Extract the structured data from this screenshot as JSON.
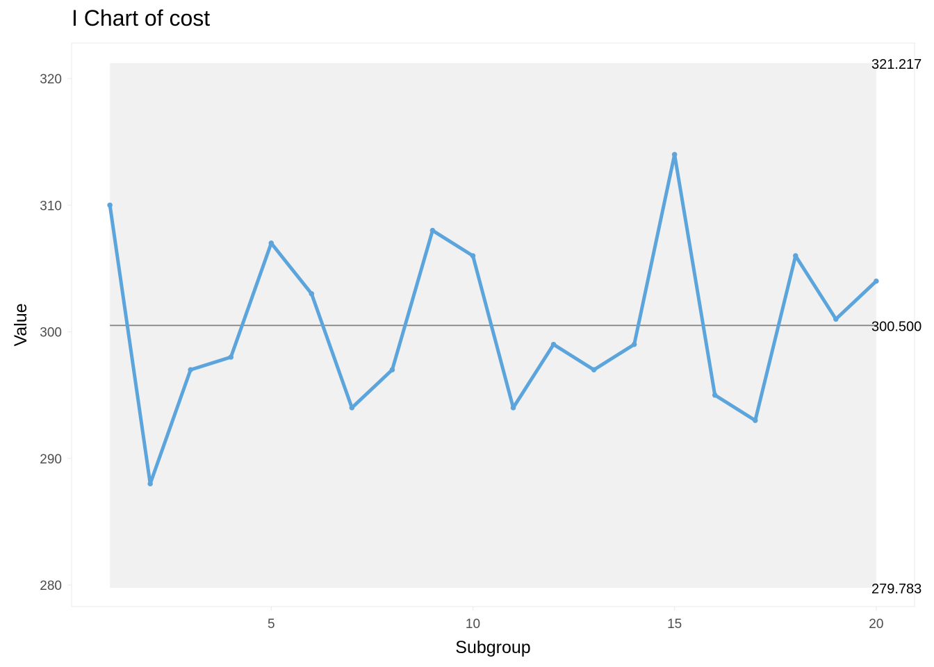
{
  "chart_data": {
    "type": "line",
    "title": "I Chart of cost",
    "xlabel": "Subgroup",
    "ylabel": "Value",
    "x": [
      1,
      2,
      3,
      4,
      5,
      6,
      7,
      8,
      9,
      10,
      11,
      12,
      13,
      14,
      15,
      16,
      17,
      18,
      19,
      20
    ],
    "series": [
      {
        "values": [
          310,
          288,
          297,
          298,
          307,
          303,
          294,
          297,
          308,
          306,
          294,
          299,
          297,
          299,
          314,
          295,
          293,
          306,
          301,
          304
        ]
      }
    ],
    "center_line": 300.5,
    "ucl": 321.217,
    "lcl": 279.783,
    "limit_labels": {
      "ucl": "321.217",
      "center": "300.500",
      "lcl": "279.783"
    },
    "xlim": [
      0.05,
      20.95
    ],
    "ylim": [
      278.3,
      322.8
    ],
    "x_ticks": [
      5,
      10,
      15,
      20
    ],
    "x_tick_labels": [
      "5",
      "10",
      "15",
      "20"
    ],
    "y_ticks": [
      280,
      290,
      300,
      310,
      320
    ],
    "y_tick_labels": [
      "280",
      "290",
      "300",
      "310",
      "320"
    ],
    "grid": false,
    "legend": "none",
    "colors": {
      "line": "#5ca5dc",
      "center_line": "#808080",
      "limits_band": "#f1f1f1",
      "panel_border": "#ececec",
      "tick_text": "#4d4d4d"
    }
  }
}
